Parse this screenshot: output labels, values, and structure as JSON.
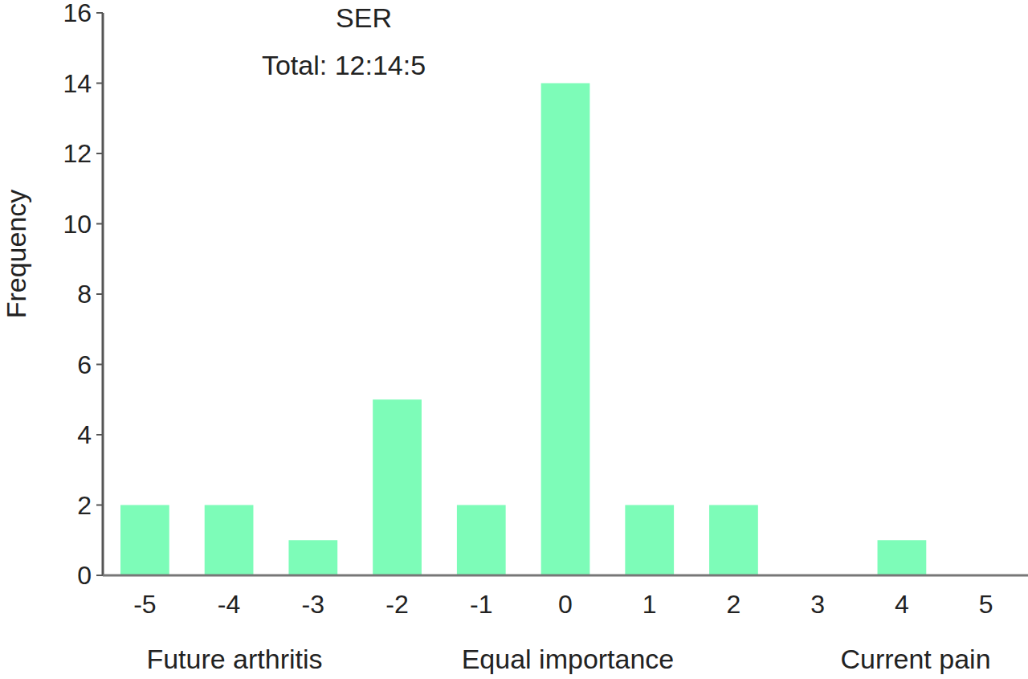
{
  "chart_data": {
    "type": "bar",
    "title": "SER",
    "subtitle": "Total: 12:14:5",
    "y_label": "Frequency",
    "categories": [
      "-5",
      "-4",
      "-3",
      "-2",
      "-1",
      "0",
      "1",
      "2",
      "3",
      "4",
      "5"
    ],
    "values": [
      2,
      2,
      1,
      5,
      2,
      14,
      2,
      2,
      0,
      1,
      0
    ],
    "color": "#7dfcb8",
    "ylim": [
      0,
      16
    ],
    "yticks": [
      0,
      2,
      4,
      6,
      8,
      10,
      12,
      14,
      16
    ],
    "grid": false,
    "annotations": [
      "Future arthritis",
      "Equal importance",
      "Current pain"
    ]
  }
}
